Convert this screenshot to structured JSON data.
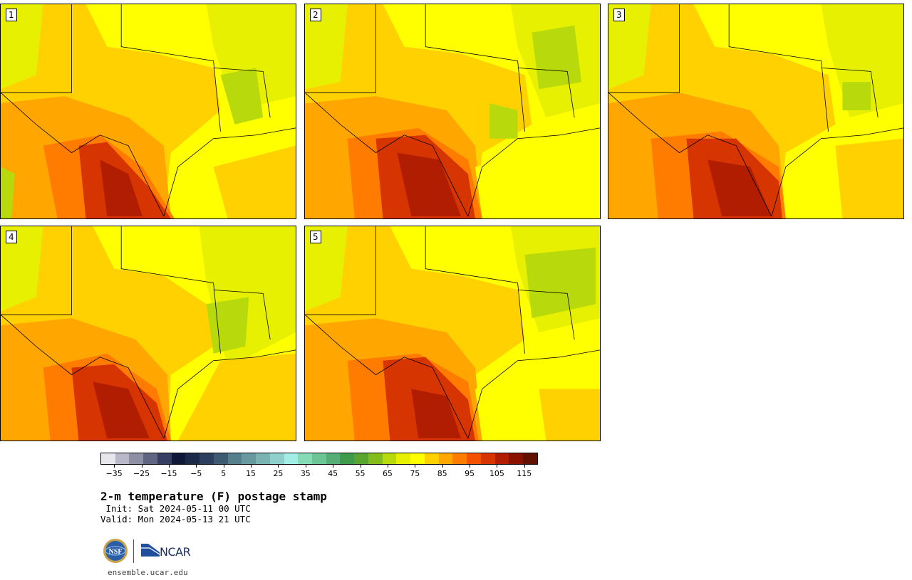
{
  "panels": [
    {
      "label": "1"
    },
    {
      "label": "2"
    },
    {
      "label": "3"
    },
    {
      "label": "4"
    },
    {
      "label": "5"
    }
  ],
  "colorbar": {
    "colors": [
      "#e6e6ec",
      "#b8b8c8",
      "#8e91a5",
      "#5f6583",
      "#363f63",
      "#0f1838",
      "#1c2a4a",
      "#2c3f5e",
      "#3e5a72",
      "#557f8a",
      "#67999e",
      "#7bb3b3",
      "#8fd0cc",
      "#a2ede6",
      "#84dbb5",
      "#6cc594",
      "#56ad75",
      "#3f9a4b",
      "#5aa52f",
      "#84bd1a",
      "#b8d90b",
      "#e6f000",
      "#ffff00",
      "#ffd100",
      "#ffa600",
      "#ff7c00",
      "#f55200",
      "#d63400",
      "#b11d00",
      "#8a1100",
      "#621000"
    ],
    "tick_values": [
      -35,
      -25,
      -15,
      -5,
      5,
      15,
      25,
      35,
      45,
      55,
      65,
      75,
      85,
      95,
      105,
      115
    ],
    "tick_labels": [
      "−35",
      "−25",
      "−15",
      "−5",
      "5",
      "15",
      "25",
      "35",
      "45",
      "55",
      "65",
      "75",
      "85",
      "95",
      "105",
      "115"
    ],
    "min": -40,
    "max": 120
  },
  "title": "2-m temperature (F) postage stamp",
  "init": " Init: Sat 2024-05-11 00 UTC",
  "valid": "Valid: Mon 2024-05-13 21 UTC",
  "logos": {
    "nsf": "NSF",
    "ncar": "NCAR",
    "nsf_icon": "nsf-globe-icon",
    "ncar_icon": "ncar-mountain-icon"
  },
  "url": "ensemble.ucar.edu"
}
